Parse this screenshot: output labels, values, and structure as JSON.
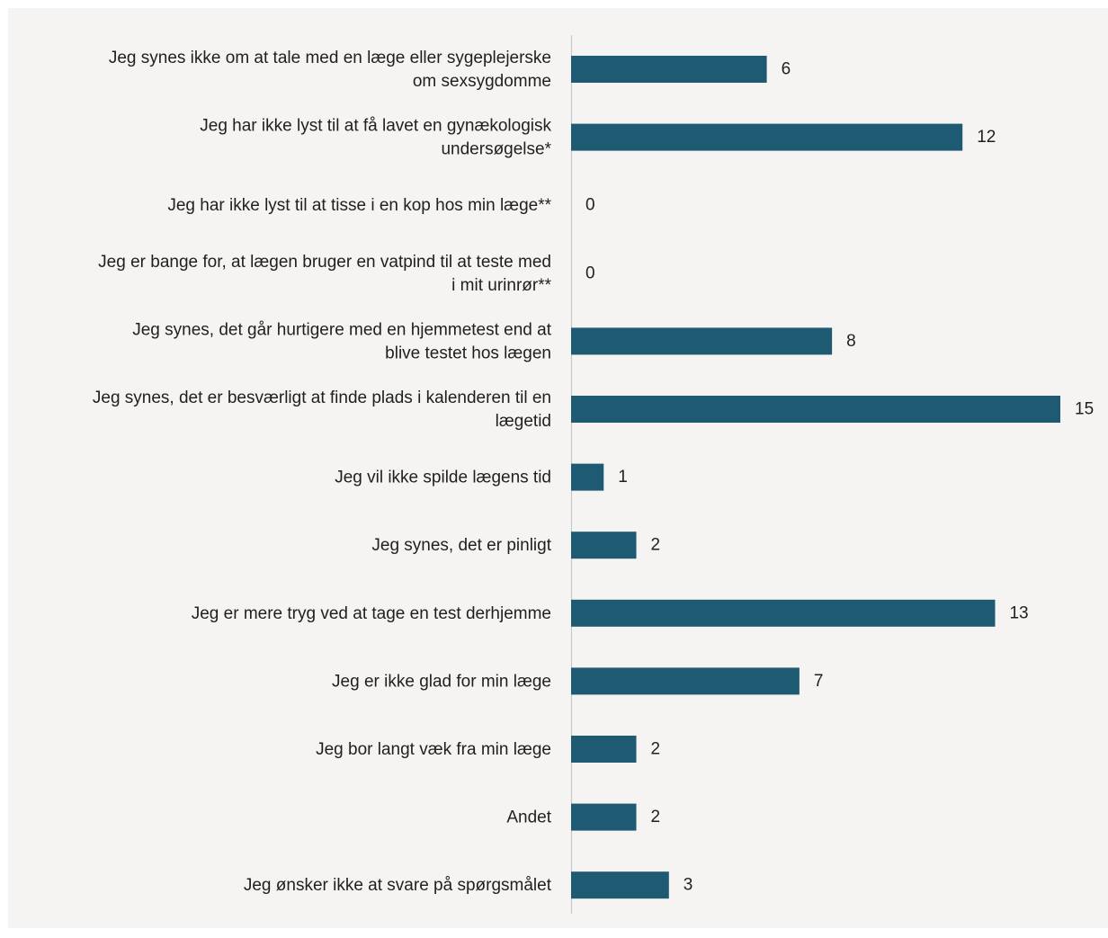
{
  "chart_data": {
    "type": "bar",
    "orientation": "horizontal",
    "categories": [
      "Jeg synes ikke om at tale med en læge eller sygeplejerske om sexsygdomme",
      "Jeg har ikke lyst til at få lavet en gynækologisk undersøgelse*",
      "Jeg har ikke lyst til at tisse i en kop hos min læge**",
      "Jeg er bange for, at lægen bruger en vatpind til at teste med i mit urinrør**",
      "Jeg synes, det går hurtigere med en hjemmetest end at blive testet hos lægen",
      "Jeg synes, det er besværligt at finde plads i kalenderen til en lægetid",
      "Jeg vil ikke spilde lægens tid",
      "Jeg synes, det er pinligt",
      "Jeg er mere tryg ved at tage en test derhjemme",
      "Jeg er ikke glad for min læge",
      "Jeg bor langt væk fra min læge",
      "Andet",
      "Jeg ønsker ikke at svare på spørgsmålet"
    ],
    "category_lines": [
      [
        "Jeg synes ikke om at tale med en læge eller sygeplejerske",
        "om sexsygdomme"
      ],
      [
        "Jeg har ikke lyst til at få lavet en gynækologisk",
        "undersøgelse*"
      ],
      [
        "Jeg har ikke lyst til at tisse i en kop hos min læge**"
      ],
      [
        "Jeg er bange for, at lægen bruger en vatpind til at teste med",
        "i mit urinrør**"
      ],
      [
        "Jeg synes, det går hurtigere med en hjemmetest end at",
        "blive testet hos lægen"
      ],
      [
        "Jeg synes, det er besværligt at finde plads i kalenderen til en",
        "lægetid"
      ],
      [
        "Jeg vil ikke spilde lægens tid"
      ],
      [
        "Jeg synes, det er pinligt"
      ],
      [
        "Jeg er mere tryg ved at tage en test derhjemme"
      ],
      [
        "Jeg er ikke glad for min læge"
      ],
      [
        "Jeg bor langt væk fra min læge"
      ],
      [
        "Andet"
      ],
      [
        "Jeg ønsker ikke at svare på spørgsmålet"
      ]
    ],
    "values": [
      6,
      12,
      0,
      0,
      8,
      15,
      1,
      2,
      13,
      7,
      2,
      2,
      3
    ],
    "xlim": [
      0,
      15
    ],
    "data_labels": true,
    "grid": false,
    "legend": "none",
    "bar_color": "#1e5b72"
  }
}
